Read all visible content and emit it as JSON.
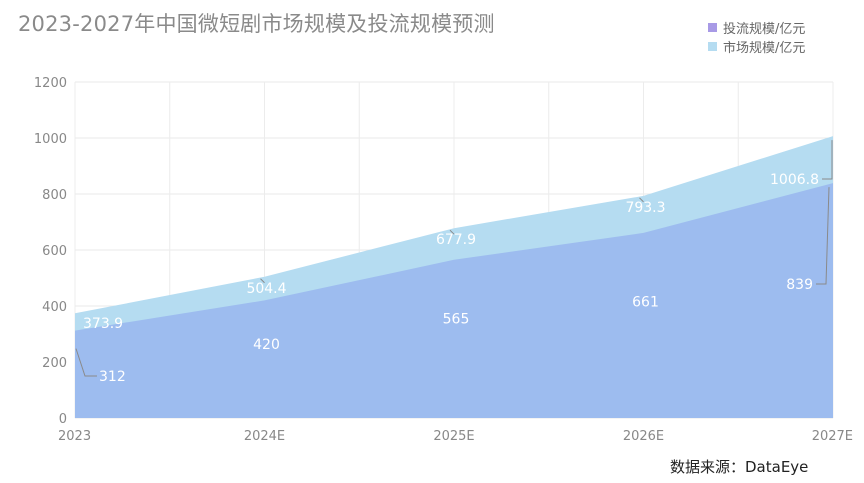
{
  "title": "2023-2027年中国微短剧市场规模及投流规模预测",
  "source": "数据来源：DataEye",
  "chart_data": {
    "type": "area",
    "categories": [
      "2023",
      "2024E",
      "2025E",
      "2026E",
      "2027E"
    ],
    "series": [
      {
        "name": "投流规模/亿元",
        "values": [
          312,
          420,
          565,
          661,
          839
        ],
        "color": "#9dbcef",
        "legend_color": "#a89ae6"
      },
      {
        "name": "市场规模/亿元",
        "values": [
          373.9,
          504.4,
          677.9,
          793.3,
          1006.8
        ],
        "color": "#b5dcf1",
        "legend_color": "#b5dcf1"
      }
    ],
    "value_labels": {
      "inner": [
        "312",
        "420",
        "565",
        "661",
        "839"
      ],
      "outer": [
        "373.9",
        "504.4",
        "677.9",
        "793.3",
        "1006.8"
      ]
    },
    "yticks": [
      "0",
      "200",
      "400",
      "600",
      "800",
      "1000",
      "1200"
    ],
    "ylim": [
      0,
      1200
    ],
    "grid": true,
    "legend_position": "top-right"
  }
}
